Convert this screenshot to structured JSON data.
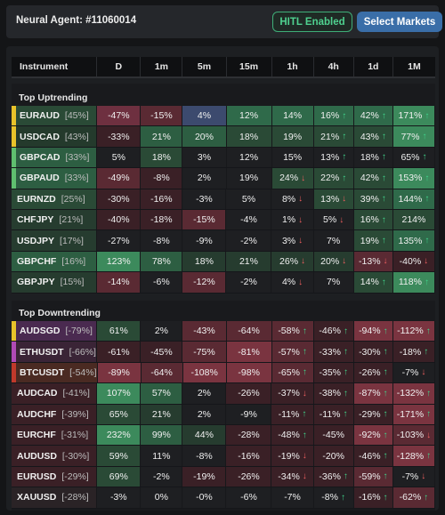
{
  "header": {
    "agent_title": "Neural Agent: #11060014",
    "hitl_label": "HITL Enabled",
    "select_markets_label": "Select Markets"
  },
  "columns": [
    "Instrument",
    "D",
    "1m",
    "5m",
    "15m",
    "1h",
    "4h",
    "1d",
    "1M"
  ],
  "colors": {
    "strong_green": "#3a7d56",
    "mid_green": "#2d5e42",
    "weak_green": "#263c2f",
    "neutral": "#1e1f22",
    "weak_red": "#3a2026",
    "mid_red": "#5a2a33",
    "strong_red": "#7a3440",
    "blue": "#3c4a6e",
    "stripe_yellow": "#e8c22a",
    "stripe_green": "#5fbf6f",
    "stripe_purple": "#b04ab5",
    "stripe_red": "#c0392b",
    "stripe_orange": "#d35400"
  },
  "sections": [
    {
      "title": "Top Uptrending",
      "rows": [
        {
          "symbol": "EURAUD",
          "rank": "45%",
          "stripe": "#e8c22a",
          "instBg": "#2a4a36",
          "cells": [
            [
              "-47%",
              "",
              "#6e3040"
            ],
            [
              "-15%",
              "",
              "#5a2a33"
            ],
            [
              "4%",
              "",
              "#3c4a6e"
            ],
            [
              "12%",
              "",
              "#2f6a4a"
            ],
            [
              "14%",
              "",
              "#2f6a4a"
            ],
            [
              "16%",
              "up",
              "#2f6a4a"
            ],
            [
              "42%",
              "up",
              "#2f6a4a"
            ],
            [
              "171%",
              "up",
              "#3c8a5c"
            ]
          ]
        },
        {
          "symbol": "USDCAD",
          "rank": "43%",
          "stripe": "#e8c22a",
          "instBg": "#243a2c",
          "cells": [
            [
              "-33%",
              "",
              "#3a2026"
            ],
            [
              "21%",
              "",
              "#2d5e42"
            ],
            [
              "20%",
              "",
              "#2d5e42"
            ],
            [
              "18%",
              "",
              "#2a4a36"
            ],
            [
              "19%",
              "",
              "#2a4a36"
            ],
            [
              "21%",
              "up",
              "#2a4a36"
            ],
            [
              "43%",
              "up",
              "#2a4a36"
            ],
            [
              "77%",
              "up",
              "#3c8a5c"
            ]
          ]
        },
        {
          "symbol": "GBPCAD",
          "rank": "33%",
          "stripe": "#5fbf6f",
          "instBg": "#2d5e42",
          "cells": [
            [
              "5%",
              "",
              "#1e1f22"
            ],
            [
              "18%",
              "",
              "#2a4a36"
            ],
            [
              "3%",
              "",
              "#1e1f22"
            ],
            [
              "12%",
              "",
              "#1e1f22"
            ],
            [
              "15%",
              "",
              "#1e1f22"
            ],
            [
              "13%",
              "up",
              "#1e1f22"
            ],
            [
              "18%",
              "up",
              "#1e1f22"
            ],
            [
              "65%",
              "up",
              "#1e1f22"
            ]
          ]
        },
        {
          "symbol": "GBPAUD",
          "rank": "33%",
          "stripe": "#5fbf6f",
          "instBg": "#2d5e42",
          "cells": [
            [
              "-49%",
              "",
              "#5a2a33"
            ],
            [
              "-8%",
              "",
              "#3a2026"
            ],
            [
              "2%",
              "",
              "#1e1f22"
            ],
            [
              "19%",
              "",
              "#1e1f22"
            ],
            [
              "24%",
              "down",
              "#2a4a36"
            ],
            [
              "22%",
              "up",
              "#2a4a36"
            ],
            [
              "42%",
              "up",
              "#2a4a36"
            ],
            [
              "153%",
              "up",
              "#3c8a5c"
            ]
          ]
        },
        {
          "symbol": "EURNZD",
          "rank": "25%",
          "stripe": "",
          "instBg": "#2a4a36",
          "cells": [
            [
              "-30%",
              "",
              "#3a2026"
            ],
            [
              "-16%",
              "",
              "#3a2026"
            ],
            [
              "-3%",
              "",
              "#1e1f22"
            ],
            [
              "5%",
              "",
              "#1e1f22"
            ],
            [
              "8%",
              "down",
              "#1e1f22"
            ],
            [
              "13%",
              "down",
              "#2a4a36"
            ],
            [
              "39%",
              "up",
              "#2a4a36"
            ],
            [
              "144%",
              "up",
              "#2f6a4a"
            ]
          ]
        },
        {
          "symbol": "CHFJPY",
          "rank": "21%",
          "stripe": "",
          "instBg": "#263c2f",
          "cells": [
            [
              "-40%",
              "",
              "#3a2026"
            ],
            [
              "-18%",
              "",
              "#3a2026"
            ],
            [
              "-15%",
              "",
              "#5a2a33"
            ],
            [
              "-4%",
              "",
              "#1e1f22"
            ],
            [
              "1%",
              "down",
              "#1e1f22"
            ],
            [
              "5%",
              "down",
              "#1e1f22"
            ],
            [
              "16%",
              "up",
              "#2a4a36"
            ],
            [
              "214%",
              "",
              "#2a4a36"
            ]
          ]
        },
        {
          "symbol": "USDJPY",
          "rank": "17%",
          "stripe": "",
          "instBg": "#263c2f",
          "cells": [
            [
              "-27%",
              "",
              "#1e1f22"
            ],
            [
              "-8%",
              "",
              "#1e1f22"
            ],
            [
              "-9%",
              "",
              "#1e1f22"
            ],
            [
              "-2%",
              "",
              "#1e1f22"
            ],
            [
              "3%",
              "down",
              "#1e1f22"
            ],
            [
              "7%",
              "",
              "#1e1f22"
            ],
            [
              "19%",
              "up",
              "#2a4a36"
            ],
            [
              "135%",
              "up",
              "#2f6a4a"
            ]
          ]
        },
        {
          "symbol": "GBPCHF",
          "rank": "16%",
          "stripe": "",
          "instBg": "#2d5e42",
          "cells": [
            [
              "123%",
              "",
              "#3c8a5c"
            ],
            [
              "78%",
              "",
              "#2d5e42"
            ],
            [
              "18%",
              "",
              "#263c2f"
            ],
            [
              "21%",
              "",
              "#263c2f"
            ],
            [
              "26%",
              "down",
              "#263c2f"
            ],
            [
              "20%",
              "down",
              "#263c2f"
            ],
            [
              "-13%",
              "down",
              "#5a2a33"
            ],
            [
              "-40%",
              "down",
              "#3a2026"
            ]
          ]
        },
        {
          "symbol": "GBPJPY",
          "rank": "15%",
          "stripe": "",
          "instBg": "#263c2f",
          "cells": [
            [
              "-14%",
              "",
              "#5a2a33"
            ],
            [
              "-6%",
              "",
              "#1e1f22"
            ],
            [
              "-12%",
              "",
              "#5a2a33"
            ],
            [
              "-2%",
              "",
              "#1e1f22"
            ],
            [
              "4%",
              "down",
              "#1e1f22"
            ],
            [
              "7%",
              "",
              "#1e1f22"
            ],
            [
              "14%",
              "up",
              "#2a4a36"
            ],
            [
              "118%",
              "up",
              "#3c8a5c"
            ]
          ]
        }
      ]
    },
    {
      "title": "Top Downtrending",
      "rows": [
        {
          "symbol": "AUDSGD",
          "rank": "-79%",
          "stripe": "#e8c22a",
          "instBg": "#4a2a50",
          "cells": [
            [
              "61%",
              "",
              "#2a4a36"
            ],
            [
              "2%",
              "",
              "#1e1f22"
            ],
            [
              "-43%",
              "",
              "#5a2a33"
            ],
            [
              "-64%",
              "",
              "#5a2a33"
            ],
            [
              "-58%",
              "up",
              "#5a2a33"
            ],
            [
              "-46%",
              "up",
              "#3a2026"
            ],
            [
              "-94%",
              "up",
              "#7a3440"
            ],
            [
              "-112%",
              "up",
              "#7a3440"
            ]
          ]
        },
        {
          "symbol": "ETHUSDT",
          "rank": "-66%",
          "stripe": "#b04ab5",
          "instBg": "#3a2436",
          "cells": [
            [
              "-61%",
              "",
              "#3a2026"
            ],
            [
              "-45%",
              "",
              "#3a2026"
            ],
            [
              "-75%",
              "",
              "#5a2a33"
            ],
            [
              "-81%",
              "",
              "#7a3440"
            ],
            [
              "-57%",
              "up",
              "#5a2a33"
            ],
            [
              "-33%",
              "up",
              "#3a2026"
            ],
            [
              "-30%",
              "up",
              "#3a2026"
            ],
            [
              "-18%",
              "up",
              "#3a2026"
            ]
          ]
        },
        {
          "symbol": "BTCUSDT",
          "rank": "-54%",
          "stripe": "#c0392b",
          "instBg": "#4a2a22",
          "cells": [
            [
              "-89%",
              "",
              "#7a3440"
            ],
            [
              "-64%",
              "",
              "#5a2a33"
            ],
            [
              "-108%",
              "",
              "#7a3440"
            ],
            [
              "-98%",
              "",
              "#7a3440"
            ],
            [
              "-65%",
              "up",
              "#5a2a33"
            ],
            [
              "-35%",
              "up",
              "#3a2026"
            ],
            [
              "-26%",
              "up",
              "#3a2026"
            ],
            [
              "-7%",
              "down",
              "#1e1f22"
            ]
          ]
        },
        {
          "symbol": "AUDCAD",
          "rank": "-41%",
          "stripe": "",
          "instBg": "#3a2026",
          "cells": [
            [
              "107%",
              "",
              "#3c8a5c"
            ],
            [
              "57%",
              "",
              "#2d5e42"
            ],
            [
              "2%",
              "",
              "#1e1f22"
            ],
            [
              "-26%",
              "",
              "#3a2026"
            ],
            [
              "-37%",
              "down",
              "#3a2026"
            ],
            [
              "-38%",
              "up",
              "#3a2026"
            ],
            [
              "-87%",
              "up",
              "#7a3440"
            ],
            [
              "-132%",
              "up",
              "#7a3440"
            ]
          ]
        },
        {
          "symbol": "AUDCHF",
          "rank": "-39%",
          "stripe": "",
          "instBg": "#3a2026",
          "cells": [
            [
              "65%",
              "",
              "#2a4a36"
            ],
            [
              "21%",
              "",
              "#263c2f"
            ],
            [
              "2%",
              "",
              "#1e1f22"
            ],
            [
              "-9%",
              "",
              "#1e1f22"
            ],
            [
              "-11%",
              "up",
              "#3a2026"
            ],
            [
              "-11%",
              "up",
              "#3a2026"
            ],
            [
              "-29%",
              "up",
              "#3a2026"
            ],
            [
              "-171%",
              "up",
              "#7a3440"
            ]
          ]
        },
        {
          "symbol": "EURCHF",
          "rank": "-31%",
          "stripe": "",
          "instBg": "#3a2026",
          "cells": [
            [
              "232%",
              "",
              "#3c8a5c"
            ],
            [
              "99%",
              "",
              "#2d5e42"
            ],
            [
              "44%",
              "",
              "#263c2f"
            ],
            [
              "-28%",
              "",
              "#3a2026"
            ],
            [
              "-48%",
              "up",
              "#3a2026"
            ],
            [
              "-45%",
              "",
              "#3a2026"
            ],
            [
              "-92%",
              "up",
              "#7a3440"
            ],
            [
              "-103%",
              "down",
              "#5a2a33"
            ]
          ]
        },
        {
          "symbol": "AUDUSD",
          "rank": "-30%",
          "stripe": "",
          "instBg": "#3a2026",
          "cells": [
            [
              "59%",
              "",
              "#2a4a36"
            ],
            [
              "11%",
              "",
              "#1e1f22"
            ],
            [
              "-8%",
              "",
              "#1e1f22"
            ],
            [
              "-16%",
              "",
              "#3a2026"
            ],
            [
              "-19%",
              "down",
              "#3a2026"
            ],
            [
              "-20%",
              "",
              "#3a2026"
            ],
            [
              "-46%",
              "up",
              "#3a2026"
            ],
            [
              "-128%",
              "up",
              "#7a3440"
            ]
          ]
        },
        {
          "symbol": "EURUSD",
          "rank": "-29%",
          "stripe": "",
          "instBg": "#3a2026",
          "cells": [
            [
              "69%",
              "",
              "#2a4a36"
            ],
            [
              "-2%",
              "",
              "#1e1f22"
            ],
            [
              "-19%",
              "",
              "#3a2026"
            ],
            [
              "-26%",
              "",
              "#3a2026"
            ],
            [
              "-34%",
              "down",
              "#3a2026"
            ],
            [
              "-36%",
              "up",
              "#3a2026"
            ],
            [
              "-59%",
              "up",
              "#5a2a33"
            ],
            [
              "-7%",
              "down",
              "#1e1f22"
            ]
          ]
        },
        {
          "symbol": "XAUUSD",
          "rank": "-28%",
          "stripe": "",
          "instBg": "#2a2326",
          "cells": [
            [
              "-3%",
              "",
              "#1e1f22"
            ],
            [
              "0%",
              "",
              "#1e1f22"
            ],
            [
              "-0%",
              "",
              "#1e1f22"
            ],
            [
              "-6%",
              "",
              "#1e1f22"
            ],
            [
              "-7%",
              "",
              "#1e1f22"
            ],
            [
              "-8%",
              "up",
              "#1e1f22"
            ],
            [
              "-16%",
              "up",
              "#3a2026"
            ],
            [
              "-62%",
              "up",
              "#5a2a33"
            ]
          ]
        }
      ]
    }
  ]
}
